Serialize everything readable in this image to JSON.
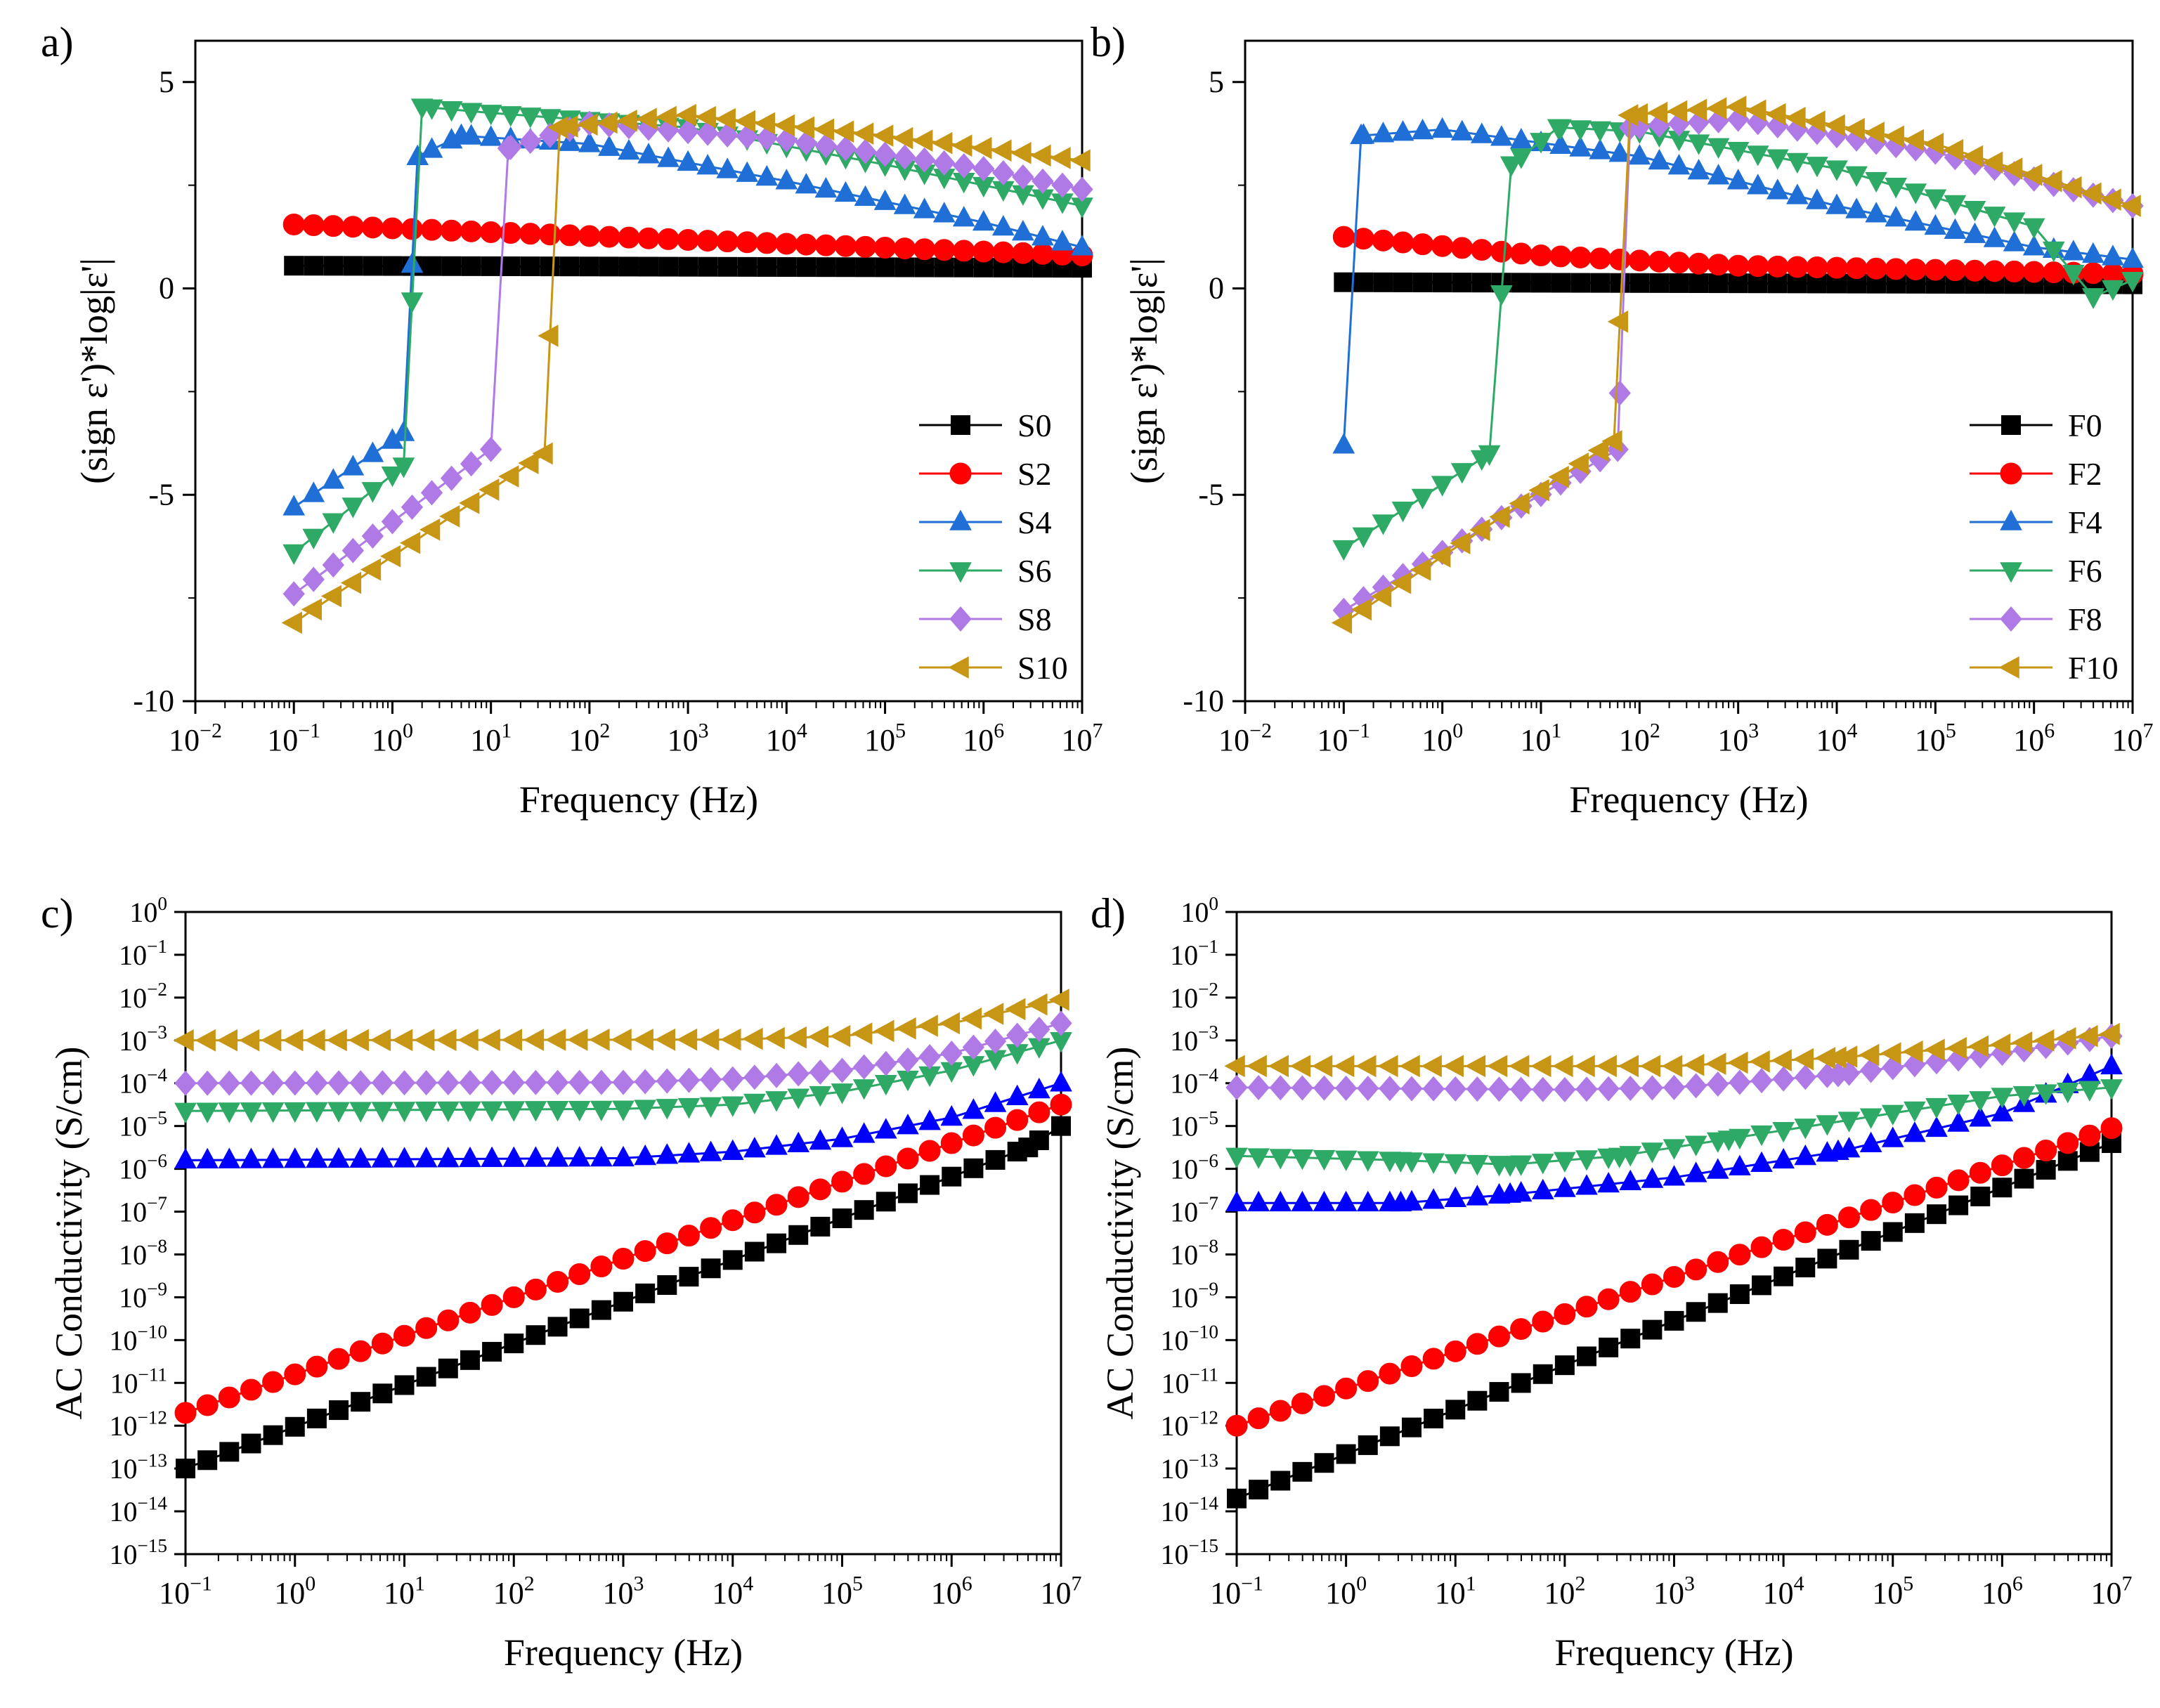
{
  "colors": {
    "black": "#000000",
    "red": "#ff0000",
    "blue_ab": "#1f6fd6",
    "blue_cd": "#0000ff",
    "green": "#2eaa66",
    "purple": "#b07ae6",
    "gold": "#c89615"
  },
  "chart_data": [
    {
      "panel_label": "a)",
      "type": "line",
      "xscale": "log",
      "xlim": [
        0.01,
        10000000
      ],
      "ylim": [
        -10,
        6
      ],
      "yticks": [
        -10,
        -5,
        0,
        5
      ],
      "xlabel": "Frequency (Hz)",
      "ylabel": "(sign ε')*log|ε'|",
      "legend_position": "lower-right",
      "series": [
        {
          "name": "S0",
          "marker": "square",
          "color": "#000000",
          "points": [
            [
              0.1,
              0.55
            ],
            [
              10000000,
              0.5
            ]
          ]
        },
        {
          "name": "S2",
          "marker": "circle",
          "color": "#ff0000",
          "points": [
            [
              0.1,
              1.55
            ],
            [
              10000000,
              0.8
            ]
          ]
        },
        {
          "name": "S4",
          "marker": "triangle-up",
          "color": "#1f6fd6",
          "points": [
            [
              0.1,
              -5.3
            ],
            [
              1.3,
              -3.5
            ],
            [
              1.8,
              3.2
            ],
            [
              5,
              3.7
            ],
            [
              100,
              3.5
            ],
            [
              10000,
              2.6
            ],
            [
              1000000,
              1.6
            ],
            [
              10000000,
              1.0
            ]
          ]
        },
        {
          "name": "S6",
          "marker": "triangle-down",
          "color": "#2eaa66",
          "points": [
            [
              0.1,
              -6.4
            ],
            [
              1.3,
              -4.3
            ],
            [
              2,
              4.4
            ],
            [
              10,
              4.25
            ],
            [
              1000,
              3.9
            ],
            [
              100000,
              3.0
            ],
            [
              10000000,
              2.0
            ]
          ]
        },
        {
          "name": "S8",
          "marker": "diamond",
          "color": "#b07ae6",
          "points": [
            [
              0.1,
              -7.4
            ],
            [
              10,
              -3.9
            ],
            [
              15,
              3.4
            ],
            [
              100,
              4.0
            ],
            [
              10000,
              3.6
            ],
            [
              1000000,
              2.9
            ],
            [
              10000000,
              2.4
            ]
          ]
        },
        {
          "name": "S10",
          "marker": "triangle-left",
          "color": "#c89615",
          "points": [
            [
              0.1,
              -8.1
            ],
            [
              35,
              -4.0
            ],
            [
              50,
              3.9
            ],
            [
              1000,
              4.2
            ],
            [
              100000,
              3.7
            ],
            [
              10000000,
              3.1
            ]
          ]
        }
      ]
    },
    {
      "panel_label": "b)",
      "type": "line",
      "xscale": "log",
      "xlim": [
        0.01,
        10000000
      ],
      "ylim": [
        -10,
        6
      ],
      "yticks": [
        -10,
        -5,
        0,
        5
      ],
      "xlabel": "Frequency (Hz)",
      "ylabel": "(sign ε')*log|ε'|",
      "legend_position": "lower-right",
      "series": [
        {
          "name": "F0",
          "marker": "square",
          "color": "#000000",
          "points": [
            [
              0.1,
              0.15
            ],
            [
              10000000,
              0.1
            ]
          ]
        },
        {
          "name": "F2",
          "marker": "circle",
          "color": "#ff0000",
          "points": [
            [
              0.1,
              1.25
            ],
            [
              10,
              0.8
            ],
            [
              1000,
              0.55
            ],
            [
              10000000,
              0.35
            ]
          ]
        },
        {
          "name": "F4",
          "marker": "triangle-up",
          "color": "#1f6fd6",
          "points": [
            [
              0.1,
              -3.8
            ],
            [
              0.15,
              3.7
            ],
            [
              1,
              3.85
            ],
            [
              100,
              3.2
            ],
            [
              10000,
              2.0
            ],
            [
              1000000,
              1.0
            ],
            [
              10000000,
              0.7
            ]
          ]
        },
        {
          "name": "F6",
          "marker": "triangle-down",
          "color": "#2eaa66",
          "points": [
            [
              0.1,
              -6.3
            ],
            [
              3,
              -4.0
            ],
            [
              5,
              3.0
            ],
            [
              15,
              3.9
            ],
            [
              100,
              3.8
            ],
            [
              10000,
              2.9
            ],
            [
              1000000,
              1.5
            ],
            [
              4000000,
              -0.2
            ],
            [
              10000000,
              0.2
            ]
          ]
        },
        {
          "name": "F8",
          "marker": "diamond",
          "color": "#b07ae6",
          "points": [
            [
              0.1,
              -7.8
            ],
            [
              60,
              -3.9
            ],
            [
              80,
              3.9
            ],
            [
              1000,
              4.1
            ],
            [
              100000,
              3.3
            ],
            [
              10000000,
              2.0
            ]
          ]
        },
        {
          "name": "F10",
          "marker": "triangle-left",
          "color": "#c89615",
          "points": [
            [
              0.1,
              -8.1
            ],
            [
              55,
              -3.7
            ],
            [
              80,
              4.2
            ],
            [
              1000,
              4.4
            ],
            [
              100000,
              3.5
            ],
            [
              10000000,
              2.0
            ]
          ]
        }
      ]
    },
    {
      "panel_label": "c)",
      "type": "line",
      "xscale": "log",
      "yscale": "log",
      "xlim": [
        0.1,
        10000000
      ],
      "ylim_exp": [
        -15,
        0
      ],
      "xlabel": "Frequency (Hz)",
      "ylabel": "AC Conductivity (S/cm)",
      "series": [
        {
          "name": "S0",
          "marker": "square",
          "color": "#000000",
          "log_points": [
            [
              -1,
              -13.0
            ],
            [
              6.7,
              -5.5
            ],
            [
              7,
              -5.0
            ]
          ]
        },
        {
          "name": "S2",
          "marker": "circle",
          "color": "#ff0000",
          "log_points": [
            [
              -1,
              -11.7
            ],
            [
              7,
              -4.5
            ]
          ]
        },
        {
          "name": "S4",
          "marker": "triangle-up",
          "color": "#0000ff",
          "log_points": [
            [
              -1,
              -5.8
            ],
            [
              3,
              -5.75
            ],
            [
              4,
              -5.6
            ],
            [
              5,
              -5.3
            ],
            [
              6,
              -4.8
            ],
            [
              7,
              -4.0
            ]
          ]
        },
        {
          "name": "S6",
          "marker": "triangle-down",
          "color": "#2eaa66",
          "log_points": [
            [
              -1,
              -4.65
            ],
            [
              3,
              -4.6
            ],
            [
              4,
              -4.5
            ],
            [
              5,
              -4.2
            ],
            [
              6,
              -3.7
            ],
            [
              7,
              -3.0
            ]
          ]
        },
        {
          "name": "S8",
          "marker": "diamond",
          "color": "#b07ae6",
          "log_points": [
            [
              -1,
              -4.0
            ],
            [
              3,
              -3.98
            ],
            [
              4,
              -3.9
            ],
            [
              5,
              -3.7
            ],
            [
              6,
              -3.3
            ],
            [
              7,
              -2.6
            ]
          ]
        },
        {
          "name": "S10",
          "marker": "triangle-left",
          "color": "#c89615",
          "log_points": [
            [
              -1,
              -3.0
            ],
            [
              4,
              -2.98
            ],
            [
              5,
              -2.9
            ],
            [
              6,
              -2.6
            ],
            [
              7,
              -2.05
            ]
          ]
        }
      ]
    },
    {
      "panel_label": "d)",
      "type": "line",
      "xscale": "log",
      "yscale": "log",
      "xlim": [
        0.1,
        10000000
      ],
      "ylim_exp": [
        -15,
        0
      ],
      "xlabel": "Frequency (Hz)",
      "ylabel": "AC Conductivity (S/cm)",
      "series": [
        {
          "name": "F0",
          "marker": "square",
          "color": "#000000",
          "log_points": [
            [
              -1,
              -13.7
            ],
            [
              7,
              -5.4
            ]
          ]
        },
        {
          "name": "F2",
          "marker": "circle",
          "color": "#ff0000",
          "log_points": [
            [
              -1,
              -12.0
            ],
            [
              7,
              -5.05
            ]
          ]
        },
        {
          "name": "F4",
          "marker": "triangle-up",
          "color": "#0000ff",
          "log_points": [
            [
              -1,
              -6.8
            ],
            [
              0.5,
              -6.8
            ],
            [
              1.5,
              -6.6
            ],
            [
              3,
              -6.2
            ],
            [
              4.5,
              -5.6
            ],
            [
              6,
              -4.7
            ],
            [
              7,
              -3.6
            ]
          ]
        },
        {
          "name": "F6",
          "marker": "triangle-down",
          "color": "#2eaa66",
          "log_points": [
            [
              -1,
              -5.7
            ],
            [
              0.5,
              -5.8
            ],
            [
              1.5,
              -5.9
            ],
            [
              2.5,
              -5.7
            ],
            [
              3.5,
              -5.3
            ],
            [
              5,
              -4.7
            ],
            [
              6,
              -4.3
            ],
            [
              7,
              -4.1
            ]
          ]
        },
        {
          "name": "F8",
          "marker": "diamond",
          "color": "#b07ae6",
          "log_points": [
            [
              -1,
              -4.1
            ],
            [
              2,
              -4.15
            ],
            [
              3,
              -4.1
            ],
            [
              4.5,
              -3.8
            ],
            [
              6,
              -3.3
            ],
            [
              7,
              -2.9
            ]
          ]
        },
        {
          "name": "F10",
          "marker": "triangle-left",
          "color": "#c89615",
          "log_points": [
            [
              -1,
              -3.6
            ],
            [
              3,
              -3.6
            ],
            [
              4.5,
              -3.4
            ],
            [
              6,
              -3.1
            ],
            [
              7,
              -2.85
            ]
          ]
        }
      ]
    }
  ]
}
